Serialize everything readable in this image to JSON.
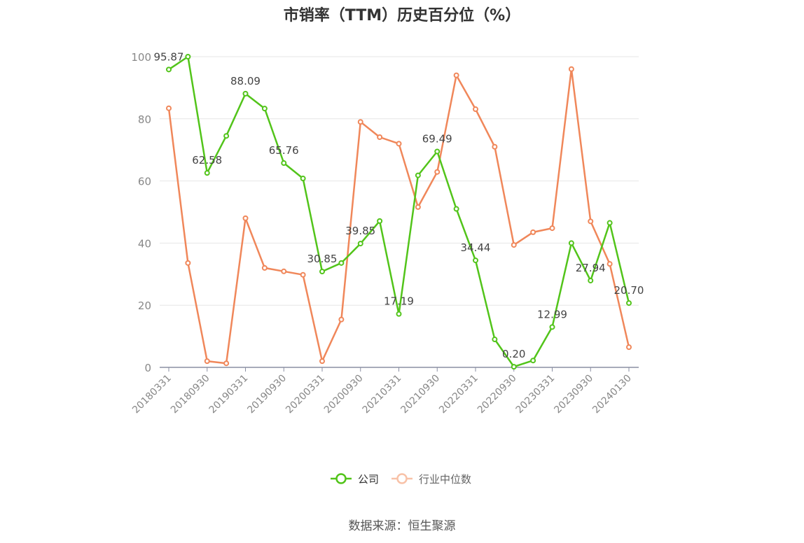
{
  "title": "市销率（TTM）历史百分位（%）",
  "source": "数据来源：恒生聚源",
  "chart_data": {
    "type": "line",
    "title": "市销率（TTM）历史百分位（%）",
    "x": [
      "20180331",
      "20180630",
      "20180930",
      "20181231",
      "20190331",
      "20190630",
      "20190930",
      "20191231",
      "20200331",
      "20200630",
      "20200930",
      "20201231",
      "20210331",
      "20210630",
      "20210930",
      "20211231",
      "20220331",
      "20220630",
      "20220930",
      "20221231",
      "20230331",
      "20230630",
      "20230930",
      "20231231",
      "20240130"
    ],
    "x_tick_labels": [
      "20180331",
      "20180930",
      "20190331",
      "20190930",
      "20200331",
      "20200930",
      "20210331",
      "20210930",
      "20220331",
      "20220930",
      "20230331",
      "20230930",
      "20240130"
    ],
    "ylim": [
      0,
      100
    ],
    "y_ticks": [
      0,
      20,
      40,
      60,
      80,
      100
    ],
    "grid": true,
    "legend_position": "bottom-center",
    "series": [
      {
        "name": "公司",
        "color": "#52c41a",
        "values": [
          95.87,
          100,
          62.58,
          74.5,
          88.09,
          83.3,
          65.76,
          60.8,
          30.85,
          33.6,
          39.85,
          47.1,
          17.19,
          61.8,
          69.49,
          51.0,
          34.44,
          9.0,
          0.2,
          2.2,
          12.99,
          40.0,
          27.94,
          46.5,
          20.7
        ],
        "data_labels": {
          "0": "95.87",
          "2": "62.58",
          "4": "88.09",
          "6": "65.76",
          "8": "30.85",
          "10": "39.85",
          "12": "17.19",
          "14": "69.49",
          "16": "34.44",
          "18": "0.20",
          "20": "12.99",
          "22": "27.94",
          "24": "20.70"
        }
      },
      {
        "name": "行业中位数",
        "color": "#f0875a",
        "values": [
          83.4,
          33.6,
          2.0,
          1.3,
          48.0,
          32.0,
          30.9,
          29.8,
          2.0,
          15.4,
          79.0,
          74.1,
          72.0,
          51.6,
          62.9,
          94.0,
          83.1,
          71.0,
          39.4,
          43.5,
          44.8,
          96.0,
          47.0,
          33.3,
          6.5
        ]
      }
    ]
  }
}
